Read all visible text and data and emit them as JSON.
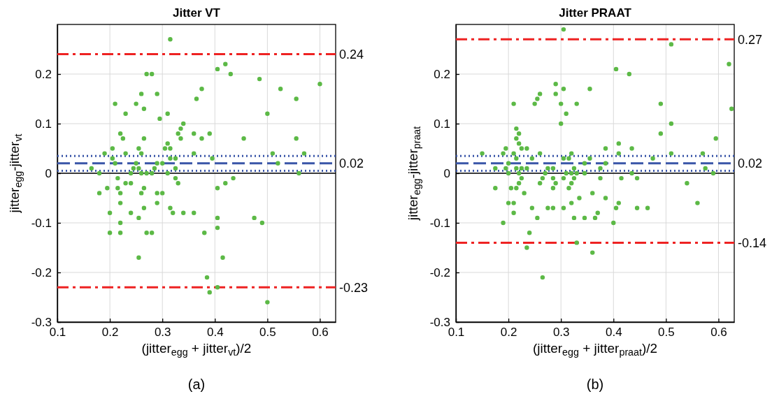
{
  "chart_data": [
    {
      "type": "scatter",
      "title": "Jitter VT",
      "xlabel": "(jitter$_{egg}$ + jitter$_{vt}$)/2",
      "ylabel": "jitter$_{egg}$-jitter$_{vt}$",
      "annotations": [
        "(a)"
      ],
      "xlim": [
        0.1,
        0.63
      ],
      "xticks": [
        0.1,
        0.2,
        0.3,
        0.4,
        0.5,
        0.6
      ],
      "ylim": [
        -0.3,
        0.3
      ],
      "yticks": [
        -0.3,
        -0.2,
        -0.1,
        0,
        0.1,
        0.2
      ],
      "grid": true,
      "marker": "circle",
      "ref_lines": [
        {
          "axis": "y",
          "value": 0,
          "label": null,
          "color": "#000000",
          "line_style": "solid"
        },
        {
          "axis": "y",
          "value": 0.24,
          "label": "0.24",
          "color": "#ee2222",
          "line_style": "dashdot"
        },
        {
          "axis": "y",
          "value": -0.23,
          "label": "-0.23",
          "color": "#ee2222",
          "line_style": "dashdot"
        },
        {
          "axis": "y",
          "value": 0.02,
          "label": "0.02",
          "color": "#3a56a8",
          "line_style": "dashed"
        },
        {
          "axis": "y",
          "value": 0.035,
          "label": null,
          "color": "#3a56a8",
          "line_style": "dotted"
        },
        {
          "axis": "y",
          "value": 0.005,
          "label": null,
          "color": "#3a56a8",
          "line_style": "dotted"
        }
      ],
      "series": [
        {
          "color": "#5cb946",
          "x": [
            0.315,
            0.42,
            0.405,
            0.43,
            0.27,
            0.28,
            0.485,
            0.6,
            0.375,
            0.525,
            0.26,
            0.29,
            0.365,
            0.555,
            0.21,
            0.25,
            0.265,
            0.23,
            0.31,
            0.5,
            0.295,
            0.34,
            0.335,
            0.22,
            0.33,
            0.36,
            0.39,
            0.225,
            0.265,
            0.335,
            0.375,
            0.455,
            0.555,
            0.31,
            0.205,
            0.255,
            0.305,
            0.315,
            0.19,
            0.23,
            0.26,
            0.36,
            0.51,
            0.57,
            0.205,
            0.315,
            0.325,
            0.395,
            0.21,
            0.25,
            0.29,
            0.3,
            0.52,
            0.165,
            0.245,
            0.255,
            0.285,
            0.325,
            0.18,
            0.24,
            0.26,
            0.27,
            0.28,
            0.31,
            0.56,
            0.215,
            0.325,
            0.435,
            0.23,
            0.24,
            0.33,
            0.42,
            0.195,
            0.215,
            0.265,
            0.405,
            0.18,
            0.22,
            0.26,
            0.29,
            0.3,
            0.22,
            0.29,
            0.265,
            0.315,
            0.2,
            0.24,
            0.32,
            0.34,
            0.36,
            0.255,
            0.405,
            0.475,
            0.22,
            0.49,
            0.405,
            0.2,
            0.22,
            0.27,
            0.28,
            0.38,
            0.255,
            0.415,
            0.385,
            0.405,
            0.39,
            0.5
          ],
          "values": [
            0.27,
            0.22,
            0.21,
            0.2,
            0.2,
            0.2,
            0.19,
            0.18,
            0.17,
            0.17,
            0.16,
            0.16,
            0.15,
            0.15,
            0.14,
            0.14,
            0.13,
            0.12,
            0.12,
            0.12,
            0.11,
            0.1,
            0.09,
            0.08,
            0.08,
            0.08,
            0.08,
            0.07,
            0.07,
            0.07,
            0.07,
            0.07,
            0.07,
            0.06,
            0.05,
            0.05,
            0.05,
            0.05,
            0.04,
            0.04,
            0.04,
            0.04,
            0.04,
            0.04,
            0.03,
            0.03,
            0.03,
            0.03,
            0.02,
            0.02,
            0.02,
            0.02,
            0.02,
            0.01,
            0.01,
            0.01,
            0.01,
            0.01,
            0,
            0,
            0,
            0,
            0,
            0,
            0,
            -0.01,
            -0.01,
            -0.01,
            -0.02,
            -0.02,
            -0.02,
            -0.02,
            -0.03,
            -0.03,
            -0.03,
            -0.03,
            -0.04,
            -0.04,
            -0.04,
            -0.04,
            -0.04,
            -0.06,
            -0.06,
            -0.07,
            -0.07,
            -0.08,
            -0.08,
            -0.08,
            -0.08,
            -0.08,
            -0.09,
            -0.09,
            -0.09,
            -0.1,
            -0.1,
            -0.11,
            -0.12,
            -0.12,
            -0.12,
            -0.12,
            -0.12,
            -0.17,
            -0.17,
            -0.21,
            -0.23,
            -0.24,
            -0.26
          ]
        }
      ]
    },
    {
      "type": "scatter",
      "title": "Jitter PRAAT",
      "xlabel": "(jitter$_{egg}$ + jitter$_{praat}$)/2",
      "ylabel": "jitter$_{egg}$-jitter$_{praat}$",
      "annotations": [
        "(b)"
      ],
      "xlim": [
        0.1,
        0.63
      ],
      "xticks": [
        0.1,
        0.2,
        0.3,
        0.4,
        0.5,
        0.6
      ],
      "ylim": [
        -0.3,
        0.3
      ],
      "yticks": [
        -0.3,
        -0.2,
        -0.1,
        0,
        0.1,
        0.2
      ],
      "grid": true,
      "marker": "circle",
      "ref_lines": [
        {
          "axis": "y",
          "value": 0,
          "label": null,
          "color": "#000000",
          "line_style": "solid"
        },
        {
          "axis": "y",
          "value": 0.27,
          "label": "0.27",
          "color": "#ee2222",
          "line_style": "dashdot"
        },
        {
          "axis": "y",
          "value": -0.14,
          "label": "-0.14",
          "color": "#ee2222",
          "line_style": "dashdot"
        },
        {
          "axis": "y",
          "value": 0.02,
          "label": "0.02",
          "color": "#3a56a8",
          "line_style": "dashed"
        },
        {
          "axis": "y",
          "value": 0.035,
          "label": null,
          "color": "#3a56a8",
          "line_style": "dotted"
        },
        {
          "axis": "y",
          "value": 0.005,
          "label": null,
          "color": "#3a56a8",
          "line_style": "dotted"
        }
      ],
      "series": [
        {
          "color": "#5cb946",
          "x": [
            0.305,
            0.51,
            0.62,
            0.405,
            0.43,
            0.29,
            0.305,
            0.355,
            0.29,
            0.26,
            0.255,
            0.21,
            0.25,
            0.3,
            0.33,
            0.49,
            0.625,
            0.31,
            0.3,
            0.51,
            0.215,
            0.22,
            0.49,
            0.215,
            0.595,
            0.22,
            0.41,
            0.195,
            0.225,
            0.235,
            0.385,
            0.435,
            0.15,
            0.19,
            0.21,
            0.26,
            0.32,
            0.41,
            0.51,
            0.57,
            0.215,
            0.245,
            0.305,
            0.315,
            0.355,
            0.475,
            0.2,
            0.345,
            0.385,
            0.175,
            0.195,
            0.215,
            0.225,
            0.235,
            0.275,
            0.285,
            0.325,
            0.375,
            0.575,
            0.2,
            0.22,
            0.27,
            0.31,
            0.32,
            0.33,
            0.345,
            0.435,
            0.59,
            0.225,
            0.265,
            0.285,
            0.305,
            0.325,
            0.375,
            0.415,
            0.445,
            0.22,
            0.26,
            0.29,
            0.32,
            0.54,
            0.175,
            0.205,
            0.215,
            0.285,
            0.315,
            0.23,
            0.36,
            0.335,
            0.385,
            0.2,
            0.21,
            0.32,
            0.41,
            0.56,
            0.245,
            0.275,
            0.285,
            0.305,
            0.405,
            0.445,
            0.465,
            0.21,
            0.37,
            0.255,
            0.325,
            0.345,
            0.365,
            0.19,
            0.4,
            0.24,
            0.33,
            0.235,
            0.36,
            0.265
          ],
          "values": [
            0.29,
            0.26,
            0.22,
            0.21,
            0.2,
            0.18,
            0.17,
            0.17,
            0.16,
            0.16,
            0.15,
            0.14,
            0.14,
            0.14,
            0.14,
            0.14,
            0.13,
            0.12,
            0.1,
            0.1,
            0.09,
            0.08,
            0.08,
            0.07,
            0.07,
            0.06,
            0.06,
            0.05,
            0.05,
            0.05,
            0.05,
            0.05,
            0.04,
            0.04,
            0.04,
            0.04,
            0.04,
            0.04,
            0.04,
            0.04,
            0.03,
            0.03,
            0.03,
            0.03,
            0.03,
            0.03,
            0.02,
            0.02,
            0.02,
            0.01,
            0.01,
            0.01,
            0.01,
            0.01,
            0.01,
            0.01,
            0.01,
            0.01,
            0.01,
            0,
            0,
            0,
            0,
            0,
            0,
            0,
            0,
            0,
            -0.01,
            -0.01,
            -0.01,
            -0.01,
            -0.01,
            -0.01,
            -0.01,
            -0.01,
            -0.02,
            -0.02,
            -0.02,
            -0.02,
            -0.02,
            -0.03,
            -0.03,
            -0.03,
            -0.03,
            -0.03,
            -0.04,
            -0.04,
            -0.05,
            -0.05,
            -0.06,
            -0.06,
            -0.06,
            -0.06,
            -0.06,
            -0.07,
            -0.07,
            -0.07,
            -0.07,
            -0.07,
            -0.07,
            -0.07,
            -0.08,
            -0.08,
            -0.09,
            -0.09,
            -0.09,
            -0.09,
            -0.1,
            -0.1,
            -0.12,
            -0.14,
            -0.15,
            -0.16,
            -0.21
          ]
        }
      ]
    }
  ]
}
